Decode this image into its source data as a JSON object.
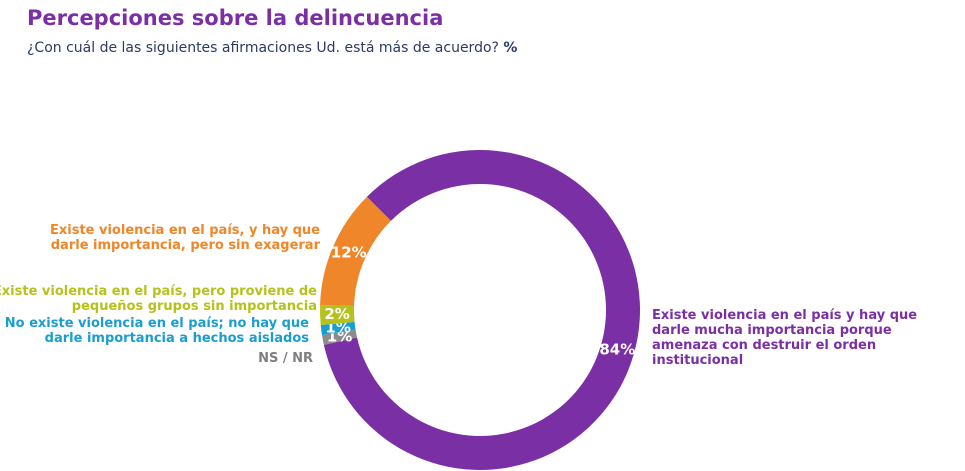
{
  "chart_data": {
    "type": "donut",
    "title": "Percepciones sobre la delincuencia",
    "subtitle": "¿Con cuál de las siguientes afirmaciones Ud. está más de acuerdo?",
    "unit": "%",
    "categories": [
      "Existe violencia en el país y hay que darle mucha importancia porque amenaza con destruir el orden institucional",
      "NS / NR",
      "No existe violencia en el país; no hay que darle importancia a hechos aislados",
      "Existe violencia en el país, pero proviene de pequeños grupos sin importancia",
      "Existe violencia en el país, y hay que darle importancia, pero sin exagerar"
    ],
    "values": [
      84,
      1,
      1,
      2,
      12
    ],
    "value_labels": [
      "84%",
      "1%",
      "1%",
      "2%",
      "12%"
    ],
    "colors": [
      "#7b2fa5",
      "#8c8c8c",
      "#1a9ed0",
      "#b5c21b",
      "#f0862a"
    ]
  }
}
